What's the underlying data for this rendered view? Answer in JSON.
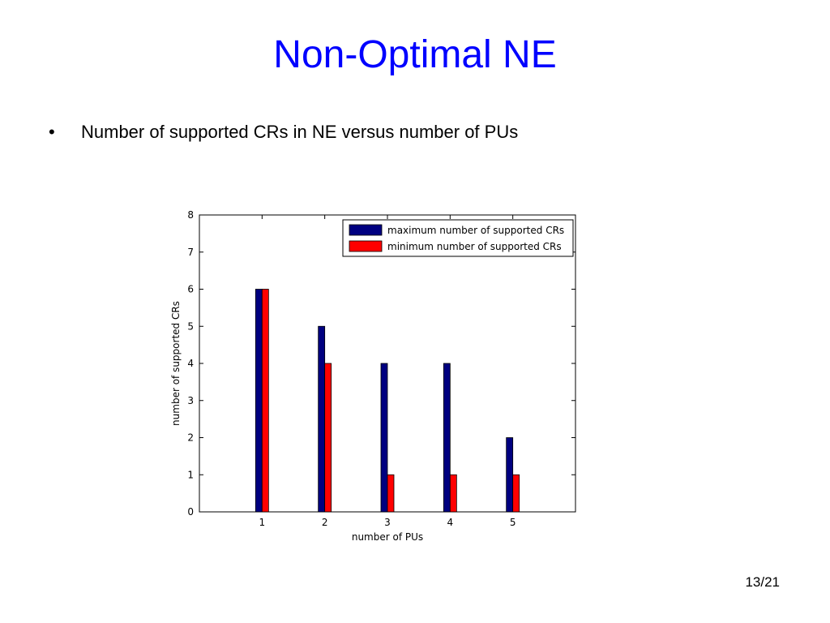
{
  "slide": {
    "title": "Non-Optimal NE",
    "bullet_symbol": "•",
    "bullet_text": "Number of supported CRs in NE versus number of PUs",
    "page_number": "13/21"
  },
  "chart_data": {
    "type": "bar",
    "categories": [
      "1",
      "2",
      "3",
      "4",
      "5"
    ],
    "series": [
      {
        "name": "maximum number of supported CRs",
        "values": [
          6,
          5,
          4,
          4,
          2
        ],
        "color": "#000080"
      },
      {
        "name": "minimum number of supported CRs",
        "values": [
          6,
          4,
          1,
          1,
          1
        ],
        "color": "#ff0000"
      }
    ],
    "xlabel": "number of PUs",
    "ylabel": "number of supported CRs",
    "xlim": [
      0,
      6
    ],
    "ylim": [
      0,
      8
    ],
    "yticks": [
      0,
      1,
      2,
      3,
      4,
      5,
      6,
      7,
      8
    ],
    "grid": false,
    "legend_position": "top-right"
  }
}
